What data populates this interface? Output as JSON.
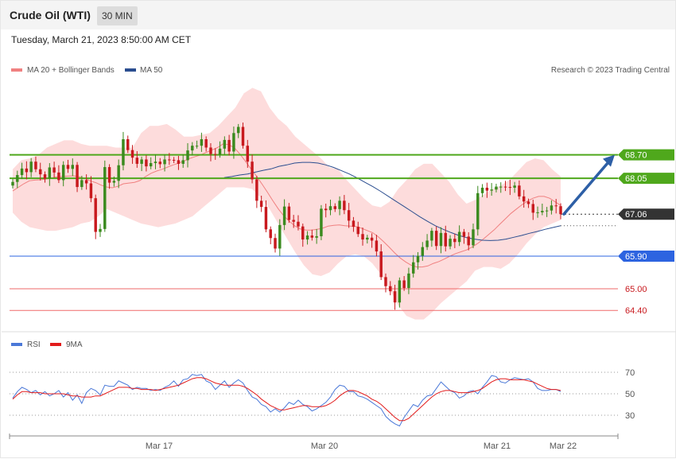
{
  "header": {
    "title": "Crude Oil (WTI)",
    "interval": "30 MIN"
  },
  "datetime": "Tuesday, March 21, 2023 8:50:00 AM CET",
  "credit": "Research © 2023 Trading Central",
  "colors": {
    "candle_up": "#3a8a1e",
    "candle_down": "#c8191e",
    "bollinger_fill": "#fdd6d6",
    "ma20": "#f08080",
    "ma50": "#2a4d8f",
    "resistance": "#4fa81c",
    "support": "#2d64e0",
    "minor_support": "#ef6a6a",
    "current": "#333333",
    "arrow": "#2d5fa6",
    "rsi": "#4a78d8",
    "rsi_ma": "#e21b1b"
  },
  "chart_data": [
    {
      "type": "candlestick",
      "legend": [
        {
          "name": "MA 20 + Bollinger Bands",
          "color": "#f08080"
        },
        {
          "name": "MA 50",
          "color": "#2a4d8f"
        }
      ],
      "x_labels": [
        "Mar 17",
        "Mar 20",
        "Mar 21",
        "Mar 22"
      ],
      "levels": [
        {
          "value": 68.7,
          "label": "68.70",
          "kind": "resistance"
        },
        {
          "value": 68.05,
          "label": "68.05",
          "kind": "resistance"
        },
        {
          "value": 67.06,
          "label": "67.06",
          "kind": "current"
        },
        {
          "value": 65.9,
          "label": "65.90",
          "kind": "support"
        },
        {
          "value": 65.0,
          "label": "65.00",
          "kind": "minor_support"
        },
        {
          "value": 64.4,
          "label": "64.40",
          "kind": "minor_support"
        }
      ],
      "projection": {
        "from": 67.06,
        "to": 68.7
      },
      "ylim": [
        63.9,
        70.8
      ],
      "closes": [
        67.95,
        68.14,
        68.32,
        68.22,
        68.51,
        68.3,
        68.16,
        68.04,
        68.35,
        68.21,
        68.0,
        68.42,
        68.31,
        68.42,
        67.81,
        68.0,
        67.91,
        67.5,
        66.57,
        66.65,
        68.36,
        67.93,
        67.98,
        68.41,
        69.13,
        68.83,
        68.62,
        68.45,
        68.57,
        68.38,
        68.47,
        68.51,
        68.44,
        68.57,
        68.56,
        68.55,
        68.45,
        68.55,
        68.82,
        68.95,
        68.95,
        69.13,
        68.9,
        68.72,
        68.7,
        68.87,
        69.11,
        68.79,
        69.3,
        69.47,
        68.95,
        68.51,
        68.02,
        67.43,
        67.26,
        66.64,
        66.4,
        66.11,
        66.76,
        67.27,
        66.9,
        66.85,
        66.72,
        66.36,
        66.47,
        66.41,
        66.45,
        67.21,
        67.17,
        67.28,
        67.2,
        67.43,
        67.17,
        66.88,
        66.71,
        66.51,
        66.36,
        66.41,
        66.33,
        66.03,
        65.32,
        65.07,
        64.93,
        64.62,
        65.23,
        65.02,
        65.42,
        65.73,
        65.91,
        66.15,
        66.33,
        66.6,
        66.18,
        66.54,
        66.17,
        66.38,
        66.29,
        66.57,
        66.44,
        66.2,
        66.64,
        67.64,
        67.79,
        67.71,
        67.74,
        67.82,
        67.82,
        67.81,
        67.79,
        67.85,
        67.55,
        67.41,
        67.34,
        67.1,
        67.11,
        67.15,
        67.16,
        67.3,
        67.28,
        67.06
      ],
      "ma20": [
        67.7,
        67.8,
        67.9,
        67.98,
        68.0,
        68.01,
        68.03,
        68.06,
        68.09,
        68.1,
        68.11,
        68.12,
        68.09,
        68.05,
        67.98,
        67.93,
        67.86,
        67.81,
        67.79,
        67.83,
        67.9,
        67.92,
        67.94,
        67.99,
        68.1,
        68.19,
        68.25,
        68.3,
        68.36,
        68.42,
        68.47,
        68.53,
        68.6,
        68.65,
        68.7,
        68.77,
        68.83,
        68.9,
        69.0,
        68.98,
        68.9,
        68.73,
        68.53,
        68.32,
        68.12,
        67.9,
        67.67,
        67.43,
        67.2,
        67.01,
        66.86,
        66.73,
        66.65,
        66.62,
        66.62,
        66.64,
        66.67,
        66.73,
        66.75,
        66.76,
        66.74,
        66.73,
        66.72,
        66.67,
        66.61,
        66.55,
        66.44,
        66.3,
        66.15,
        65.99,
        65.85,
        65.74,
        65.65,
        65.6,
        65.6,
        65.63,
        65.7,
        65.75,
        65.82,
        65.9,
        65.97,
        66.02,
        66.07,
        66.15,
        66.25,
        66.37,
        66.5,
        66.63,
        66.78,
        66.93,
        67.08,
        67.2,
        67.32,
        67.42,
        67.5,
        67.55,
        67.55,
        67.5,
        67.4,
        67.3
      ],
      "ma50": [
        null,
        null,
        null,
        null,
        null,
        null,
        null,
        null,
        null,
        null,
        null,
        null,
        null,
        null,
        null,
        null,
        null,
        null,
        null,
        null,
        null,
        null,
        null,
        null,
        null,
        null,
        null,
        68.07,
        68.1,
        68.14,
        68.17,
        68.22,
        68.27,
        68.31,
        68.38,
        68.42,
        68.47,
        68.49,
        68.49,
        68.47,
        68.42,
        68.35,
        68.26,
        68.17,
        68.06,
        67.94,
        67.82,
        67.69,
        67.55,
        67.41,
        67.27,
        67.13,
        66.99,
        66.86,
        66.74,
        66.64,
        66.55,
        66.47,
        66.41,
        66.37,
        66.34,
        66.33,
        66.34,
        66.37,
        66.42,
        66.47,
        66.53,
        66.58,
        66.64,
        66.69,
        66.74
      ],
      "bollinger": {
        "upper": [
          68.3,
          68.55,
          68.6,
          68.7,
          68.9,
          69.0,
          69.1,
          69.1,
          69.0,
          68.95,
          68.95,
          68.95,
          68.9,
          68.9,
          68.9,
          69.3,
          69.5,
          69.5,
          69.55,
          69.4,
          69.2,
          69.2,
          69.25,
          69.3,
          69.5,
          69.75,
          70.0,
          70.4,
          70.55,
          70.45,
          70.0,
          69.7,
          69.5,
          69.2,
          69.0,
          68.8,
          68.6,
          68.35,
          68.3,
          68.0,
          67.75,
          67.5,
          67.3,
          67.25,
          67.4,
          67.75,
          68.0,
          68.3,
          68.45,
          68.45,
          68.2,
          67.95,
          67.6,
          67.35,
          67.45,
          67.6,
          67.75,
          67.85,
          68.0,
          68.25,
          68.5,
          68.6,
          68.55,
          68.3,
          68.1
        ],
        "lower": [
          67.1,
          66.85,
          66.7,
          66.65,
          66.6,
          66.6,
          66.65,
          66.7,
          66.8,
          66.85,
          67.0,
          67.2,
          67.1,
          67.0,
          66.9,
          66.8,
          66.75,
          66.7,
          66.75,
          66.8,
          66.9,
          67.0,
          67.2,
          67.4,
          67.6,
          67.8,
          67.8,
          67.8,
          67.75,
          67.5,
          67.2,
          66.8,
          66.4,
          66.0,
          65.65,
          65.4,
          65.35,
          65.45,
          65.7,
          65.9,
          65.95,
          65.9,
          65.7,
          65.4,
          65.0,
          64.55,
          64.25,
          64.15,
          64.15,
          64.35,
          64.6,
          64.8,
          65.0,
          65.2,
          65.5,
          65.6,
          65.6,
          65.55,
          65.7,
          65.95,
          66.25,
          66.5,
          66.7,
          66.8,
          66.9
        ]
      }
    },
    {
      "type": "line",
      "legend": [
        {
          "name": "RSI",
          "color": "#4a78d8"
        },
        {
          "name": "9MA",
          "color": "#e21b1b"
        }
      ],
      "ylim": [
        10,
        90
      ],
      "y_ticks": [
        30,
        50,
        70
      ],
      "rsi": [
        46,
        52,
        56,
        54,
        51,
        53,
        49,
        52,
        48,
        50,
        53,
        47,
        51,
        44,
        49,
        41,
        51,
        55,
        53,
        49,
        58,
        57,
        57,
        62,
        60,
        58,
        54,
        56,
        55,
        55,
        53,
        54,
        53,
        56,
        58,
        62,
        57,
        63,
        64,
        68,
        67,
        68,
        62,
        60,
        54,
        58,
        62,
        56,
        60,
        63,
        60,
        53,
        47,
        45,
        40,
        38,
        33,
        36,
        33,
        37,
        42,
        40,
        44,
        40,
        38,
        34,
        36,
        39,
        42,
        47,
        54,
        58,
        57,
        52,
        52,
        48,
        47,
        45,
        42,
        39,
        36,
        29,
        25,
        22,
        20,
        28,
        34,
        40,
        38,
        44,
        48,
        49,
        55,
        61,
        57,
        53,
        51,
        46,
        48,
        52,
        53,
        50,
        56,
        61,
        67,
        66,
        61,
        60,
        63,
        65,
        64,
        63,
        64,
        61,
        55,
        53,
        53,
        54,
        54,
        52
      ],
      "rsi_ma": [
        45,
        49,
        52,
        52,
        51,
        51,
        51,
        50,
        50,
        50,
        50,
        50,
        49,
        48,
        48,
        47,
        47,
        47,
        48,
        48,
        50,
        52,
        54,
        56,
        56,
        56,
        55,
        55,
        54,
        54,
        54,
        53,
        54,
        55,
        56,
        57,
        58,
        60,
        62,
        64,
        65,
        65,
        64,
        62,
        60,
        59,
        58,
        58,
        58,
        58,
        57,
        55,
        52,
        49,
        45,
        42,
        39,
        37,
        35,
        35,
        36,
        37,
        38,
        39,
        39,
        38,
        38,
        38,
        39,
        41,
        44,
        48,
        51,
        53,
        53,
        52,
        50,
        48,
        45,
        43,
        40,
        36,
        32,
        28,
        25,
        25,
        27,
        31,
        35,
        39,
        43,
        47,
        50,
        52,
        53,
        53,
        52,
        51,
        51,
        51,
        52,
        53,
        55,
        58,
        61,
        63,
        64,
        64,
        63,
        63,
        63,
        63,
        62,
        61,
        59,
        57,
        55,
        54,
        54,
        53
      ],
      "y_labels": [
        "70",
        "50",
        "30"
      ]
    }
  ]
}
